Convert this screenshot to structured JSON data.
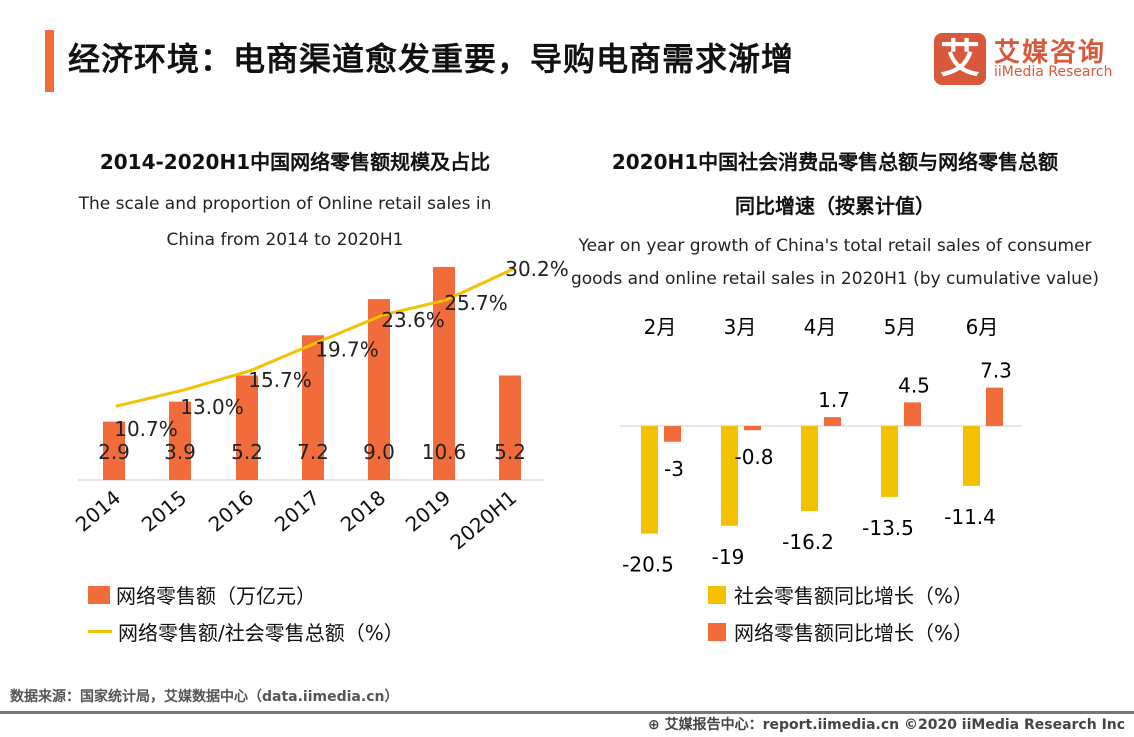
{
  "header": {
    "title": "经济环境：电商渠道愈发重要，导购电商需求渐增",
    "logo_mark": "艾",
    "logo_cn": "艾媒咨询",
    "logo_en": "iiMedia Research"
  },
  "colors": {
    "accent": "#f26b3a",
    "bar": "#f26b3a",
    "line": "#f5c000",
    "social": "#f5c000",
    "online": "#f26b3a"
  },
  "chart_data": [
    {
      "type": "bar+line",
      "title": "2014-2020H1中国网络零售额规模及占比",
      "subtitle_line1": "The scale and proportion of Online retail sales in",
      "subtitle_line2": "China from 2014 to 2020H1",
      "categories": [
        "2014",
        "2015",
        "2016",
        "2017",
        "2018",
        "2019",
        "2020H1"
      ],
      "series": [
        {
          "name": "网络零售额（万亿元）",
          "type": "bar",
          "values": [
            2.9,
            3.9,
            5.2,
            7.2,
            9.0,
            10.6,
            5.2
          ],
          "labels": [
            "2.9",
            "3.9",
            "5.2",
            "7.2",
            "9.0",
            "10.6",
            "5.2"
          ]
        },
        {
          "name": "网络零售额/社会零售总额（%）",
          "type": "line",
          "values": [
            10.7,
            13.0,
            15.7,
            19.7,
            23.6,
            25.7,
            30.2
          ],
          "labels": [
            "10.7%",
            "13.0%",
            "15.7%",
            "19.7%",
            "23.6%",
            "25.7%",
            "30.2%"
          ]
        }
      ],
      "legend": "bottom"
    },
    {
      "type": "bar",
      "title_line1": "2020H1中国社会消费品零售总额与网络零售总额",
      "title_line2": "同比增速（按累计值）",
      "subtitle_line1": "Year on year growth of China's total retail sales of consumer",
      "subtitle_line2": "goods and online retail sales in 2020H1 (by cumulative value)",
      "categories": [
        "2月",
        "3月",
        "4月",
        "5月",
        "6月"
      ],
      "series": [
        {
          "name": "社会零售额同比增长（%）",
          "values": [
            -20.5,
            -19,
            -16.2,
            -13.5,
            -11.4
          ],
          "labels": [
            "-20.5",
            "-19",
            "-16.2",
            "-13.5",
            "-11.4"
          ]
        },
        {
          "name": "网络零售额同比增长（%）",
          "values": [
            -3,
            -0.8,
            1.7,
            4.5,
            7.3
          ],
          "labels": [
            "-3",
            "-0.8",
            "1.7",
            "4.5",
            "7.3"
          ]
        }
      ],
      "legend": "bottom"
    }
  ],
  "footer": {
    "source": "数据来源：国家统计局，艾媒数据中心（data.iimedia.cn）",
    "credit": "艾媒报告中心：report.iimedia.cn  ©2020  iiMedia Research  Inc"
  }
}
